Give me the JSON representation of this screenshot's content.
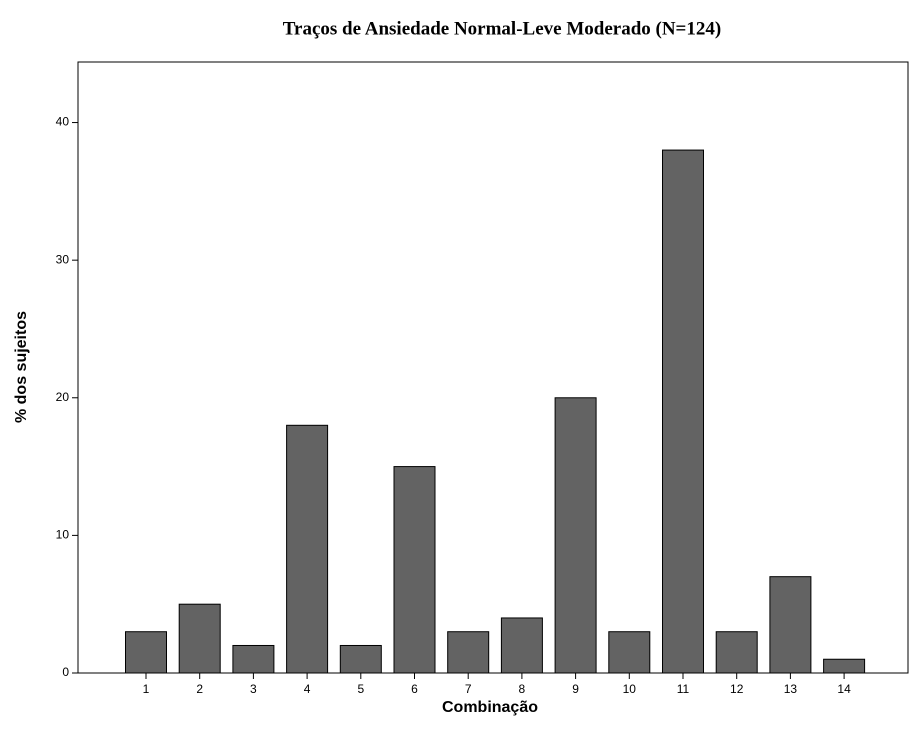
{
  "chart_data": {
    "type": "bar",
    "title": "Traços de Ansiedade Normal-Leve Moderado (N=124)",
    "xlabel": "Combinação",
    "ylabel": "% dos sujeitos",
    "categories": [
      "1",
      "2",
      "3",
      "4",
      "5",
      "6",
      "7",
      "8",
      "9",
      "10",
      "11",
      "12",
      "13",
      "14"
    ],
    "values": [
      3,
      5,
      2,
      18,
      2,
      15,
      3,
      4,
      20,
      3,
      38,
      3,
      7,
      1
    ],
    "color": "#636363",
    "ylim": [
      0,
      44.4
    ],
    "yticks": [
      0,
      10,
      20,
      30,
      40
    ],
    "grid": false
  }
}
